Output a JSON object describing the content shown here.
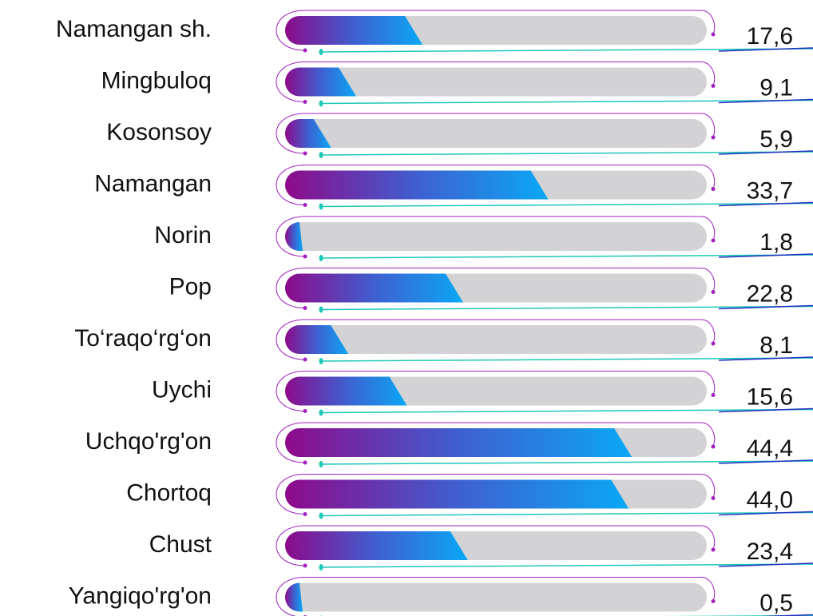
{
  "chart_data": {
    "type": "bar",
    "categories": [
      "Namangan sh.",
      "Mingbuloq",
      "Kosonsoy",
      "Namangan",
      "Norin",
      "Pop",
      "To‘raqo‘rg‘on",
      "Uychi",
      "Uchqo'rg'on",
      "Chortoq",
      "Chust",
      "Yangiqo'rg'on"
    ],
    "values": [
      17.6,
      9.1,
      5.9,
      33.7,
      1.8,
      22.8,
      8.1,
      15.6,
      44.4,
      44.0,
      23.4,
      0.5
    ],
    "value_labels": [
      "17,6",
      "9,1",
      "5,9",
      "33,7",
      "1,8",
      "22,8",
      "8,1",
      "15,6",
      "44,4",
      "44,0",
      "23,4",
      "0,5"
    ],
    "xlim": [
      0,
      54
    ],
    "colors": [
      "#8e0a8a",
      "#3f5fd0",
      "#0aa8f5"
    ],
    "track_color": "#d3d3d6"
  }
}
